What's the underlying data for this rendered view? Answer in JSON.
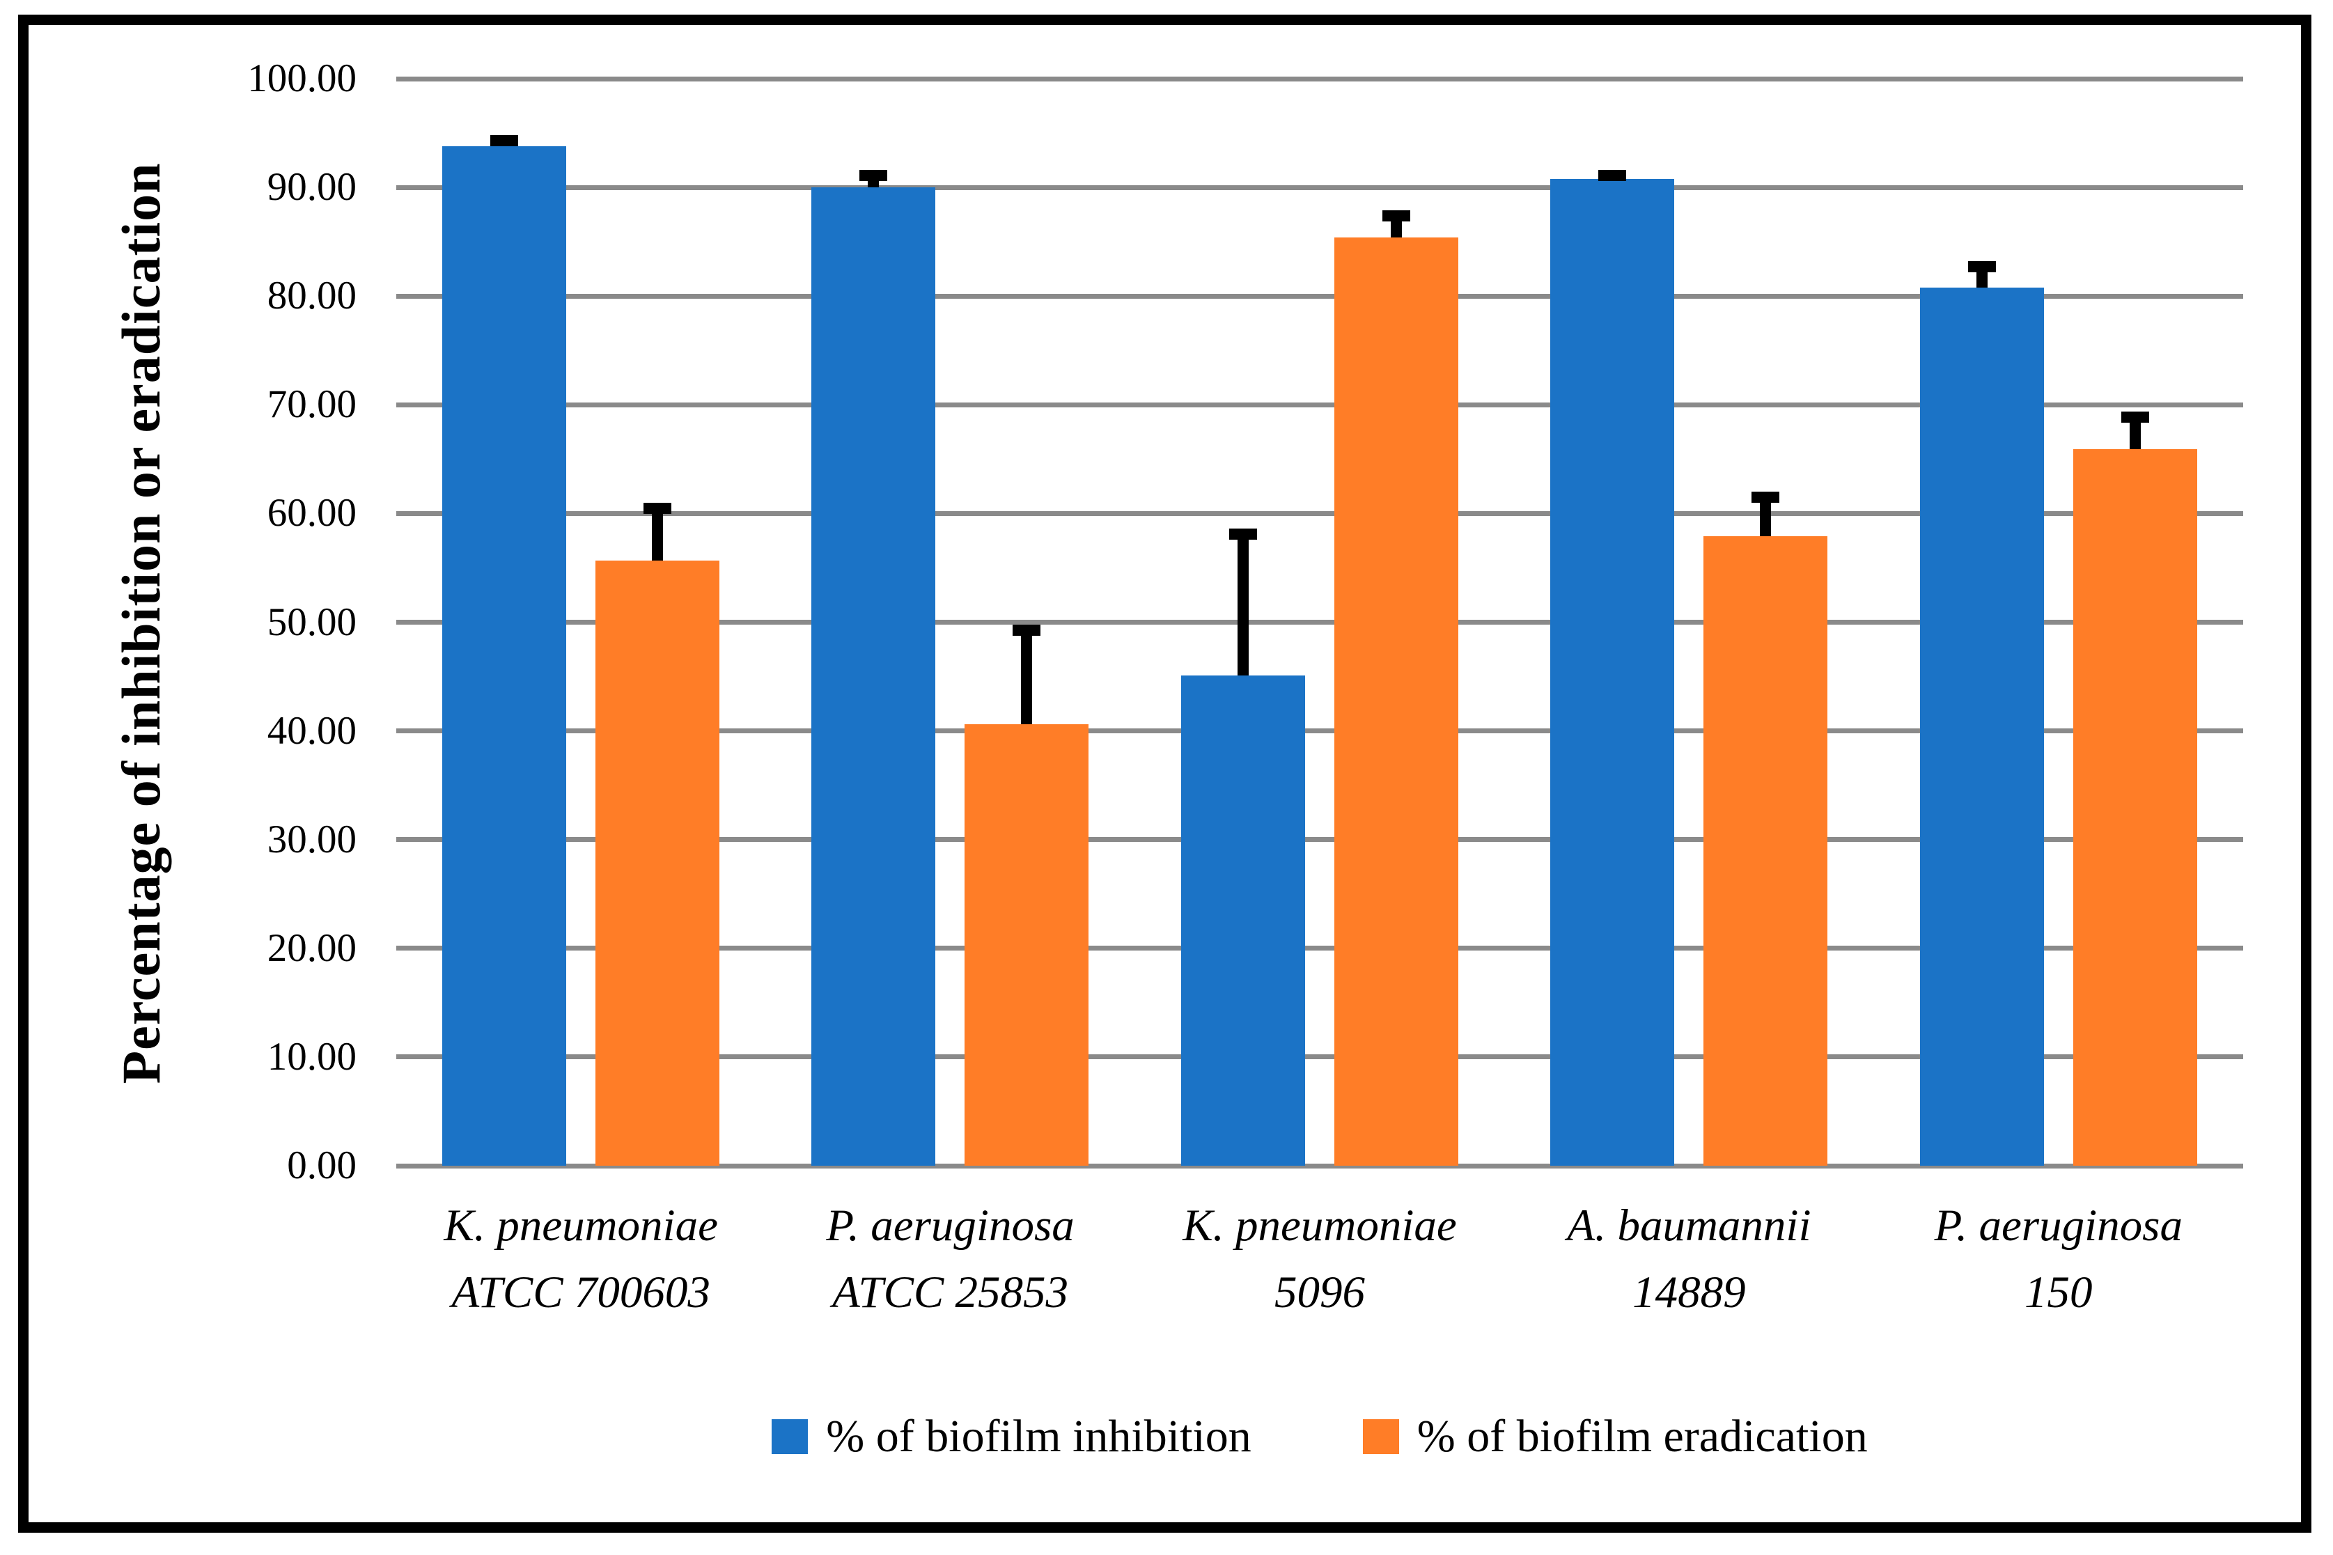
{
  "figure": {
    "background": "#FFFFFF",
    "border_color": "#000000"
  },
  "chart_data": {
    "type": "bar",
    "title": "",
    "xlabel": "",
    "ylabel": "Percentage of inhibition or eradication",
    "ylim": [
      0,
      100
    ],
    "grid": "horizontal gridlines on",
    "gridline_color": "#8A8A8A",
    "error_bar_color": "#000000",
    "legend_position": "bottom",
    "yticks": [
      {
        "label": "100.00",
        "value": 100
      },
      {
        "label": "90.00",
        "value": 90
      },
      {
        "label": "80.00",
        "value": 80
      },
      {
        "label": "70.00",
        "value": 70
      },
      {
        "label": "60.00",
        "value": 60
      },
      {
        "label": "50.00",
        "value": 50
      },
      {
        "label": "40.00",
        "value": 40
      },
      {
        "label": "30.00",
        "value": 30
      },
      {
        "label": "20.00",
        "value": 20
      },
      {
        "label": "10.00",
        "value": 10
      },
      {
        "label": "0.00",
        "value": 0
      }
    ],
    "categories": [
      {
        "line1": "K. pneumoniae",
        "line2": "ATCC 700603"
      },
      {
        "line1": "P. aeruginosa",
        "line2": "ATCC 25853"
      },
      {
        "line1": "K. pneumoniae",
        "line2": "5096"
      },
      {
        "line1": "A. baumannii",
        "line2": "14889"
      },
      {
        "line1": "P. aeruginosa",
        "line2": "150"
      }
    ],
    "series": [
      {
        "name": "% of biofilm inhibition",
        "color": "#1B73C6",
        "values": [
          93.8,
          90.0,
          45.1,
          90.8,
          80.8
        ],
        "errors_plus": [
          1.0,
          1.6,
          13.5,
          0.8,
          2.4
        ]
      },
      {
        "name": "% of biofilm eradication",
        "color": "#FF7D27",
        "values": [
          55.7,
          40.6,
          85.4,
          57.9,
          65.9
        ],
        "errors_plus": [
          5.3,
          9.2,
          2.5,
          4.1,
          3.5
        ]
      }
    ]
  }
}
